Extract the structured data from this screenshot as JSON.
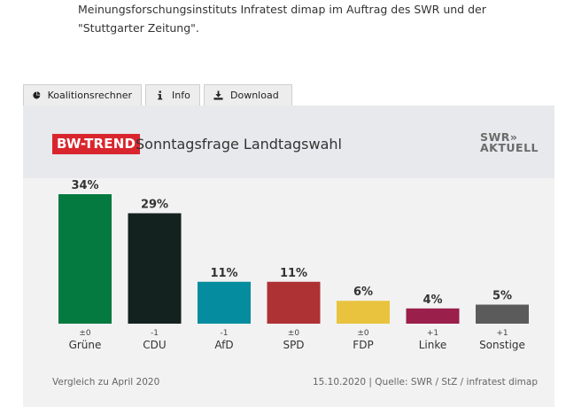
{
  "intro": {
    "line1": "Meinungsforschungsinstituts Infratest dimap im Auftrag des SWR und der",
    "line2": "\"Stuttgarter Zeitung\"."
  },
  "tabs": [
    {
      "label": "Koalitionsrechner",
      "icon": "pie-chart-icon"
    },
    {
      "label": "Info",
      "icon": "info-icon"
    },
    {
      "label": "Download",
      "icon": "download-icon"
    }
  ],
  "header": {
    "badge": "BW-TREND",
    "title": "Sonntagsfrage Landtagswahl",
    "logo_line1": "SWR»",
    "logo_line2": "AKTUELL",
    "badge_color": "#d9262e"
  },
  "chart_data": {
    "type": "bar",
    "categories": [
      "Grüne",
      "CDU",
      "AfD",
      "SPD",
      "FDP",
      "Linke",
      "Sonstige"
    ],
    "values": [
      34,
      29,
      11,
      11,
      6,
      4,
      5
    ],
    "value_labels": [
      "34%",
      "29%",
      "11%",
      "11%",
      "6%",
      "4%",
      "5%"
    ],
    "changes": [
      "±0",
      "-1",
      "-1",
      "±0",
      "±0",
      "+1",
      "+1"
    ],
    "colors": [
      "#047a40",
      "#13211f",
      "#058c9f",
      "#ae3134",
      "#e9c33e",
      "#9a1f4b",
      "#5b5b5b"
    ],
    "ylim": [
      0,
      34
    ],
    "grid": false
  },
  "footer": {
    "left": "Vergleich zu April 2020",
    "right": "15.10.2020 | Quelle: SWR / StZ / infratest dimap"
  }
}
